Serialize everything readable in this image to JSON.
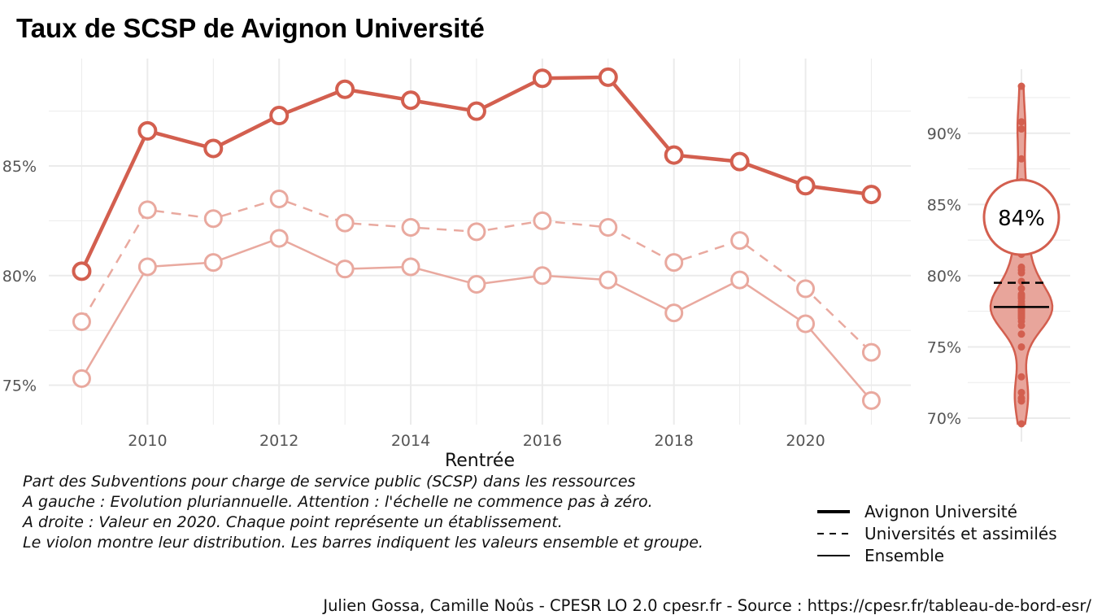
{
  "title": "Taux de SCSP de Avignon Université",
  "caption": [
    "Part des Subventions pour charge de service public (SCSP) dans les ressources",
    "A gauche : Evolution pluriannuelle. Attention : l'échelle ne commence pas à zéro.",
    "A droite : Valeur en 2020. Chaque point représente un établissement.",
    "Le violon montre leur distribution. Les barres indiquent les valeurs ensemble et groupe."
  ],
  "legend": [
    {
      "label": "Avignon Université",
      "style": "thick-solid"
    },
    {
      "label": "Universités et assimilés",
      "style": "dashed"
    },
    {
      "label": "Ensemble",
      "style": "thin-solid"
    }
  ],
  "source": "Julien Gossa, Camille Noûs - CPESR LO 2.0 cpesr.fr - Source : https://cpesr.fr/tableau-de-bord-esr/",
  "colors": {
    "main": "#d35f4f",
    "light": "#e9a99f",
    "violin_fill": "#e8a59b",
    "grid": "#ebebeb"
  },
  "chart_data": [
    {
      "type": "line",
      "xlabel": "Rentrée",
      "ylabel": "",
      "x": [
        2009,
        2010,
        2011,
        2012,
        2013,
        2014,
        2015,
        2016,
        2017,
        2018,
        2019,
        2020,
        2021
      ],
      "xticks": [
        2010,
        2012,
        2014,
        2016,
        2018,
        2020
      ],
      "yticks": [
        75,
        80,
        85
      ],
      "ytick_labels": [
        "75%",
        "80%",
        "85%"
      ],
      "xlim": [
        2008.5,
        2021.6
      ],
      "ylim": [
        73.2,
        89.9
      ],
      "grid": true,
      "series": [
        {
          "name": "Avignon Université",
          "style": "thick-solid",
          "values": [
            80.2,
            86.6,
            85.8,
            87.3,
            88.5,
            88.0,
            87.5,
            89.0,
            89.05,
            85.5,
            85.2,
            84.1,
            83.7
          ]
        },
        {
          "name": "Universités et assimilés",
          "style": "dashed",
          "values": [
            77.9,
            83.0,
            82.6,
            83.5,
            82.4,
            82.2,
            82.0,
            82.5,
            82.2,
            80.6,
            81.6,
            79.4,
            76.5
          ]
        },
        {
          "name": "Ensemble",
          "style": "thin-solid",
          "values": [
            75.3,
            80.4,
            80.6,
            81.7,
            80.3,
            80.4,
            79.6,
            80.0,
            79.8,
            78.3,
            79.8,
            77.8,
            74.3
          ]
        }
      ]
    },
    {
      "type": "violin",
      "ylabel": "",
      "yticks": [
        70,
        75,
        80,
        85,
        90
      ],
      "ytick_labels": [
        "70%",
        "75%",
        "80%",
        "85%",
        "90%"
      ],
      "ylim": [
        69.2,
        94.5
      ],
      "grid": true,
      "highlight_value": 84.1,
      "highlight_label": "84%",
      "reference_lines": [
        {
          "name": "Universités et assimilés",
          "value": 79.5,
          "style": "dashed"
        },
        {
          "name": "Ensemble",
          "value": 77.8,
          "style": "solid"
        }
      ],
      "points": [
        93.3,
        90.8,
        90.3,
        88.2,
        86.6,
        85.5,
        84.5,
        83.9,
        83.2,
        82.4,
        81.5,
        80.6,
        80.4,
        80.2,
        79.6,
        79.1,
        78.7,
        78.6,
        78.5,
        78.4,
        78.2,
        78.0,
        77.9,
        77.8,
        77.7,
        77.6,
        77.5,
        77.4,
        77.3,
        77.2,
        77.1,
        77.0,
        76.8,
        76.5,
        75.9,
        75.0,
        72.9,
        71.8,
        71.4,
        71.2,
        69.6
      ]
    }
  ]
}
